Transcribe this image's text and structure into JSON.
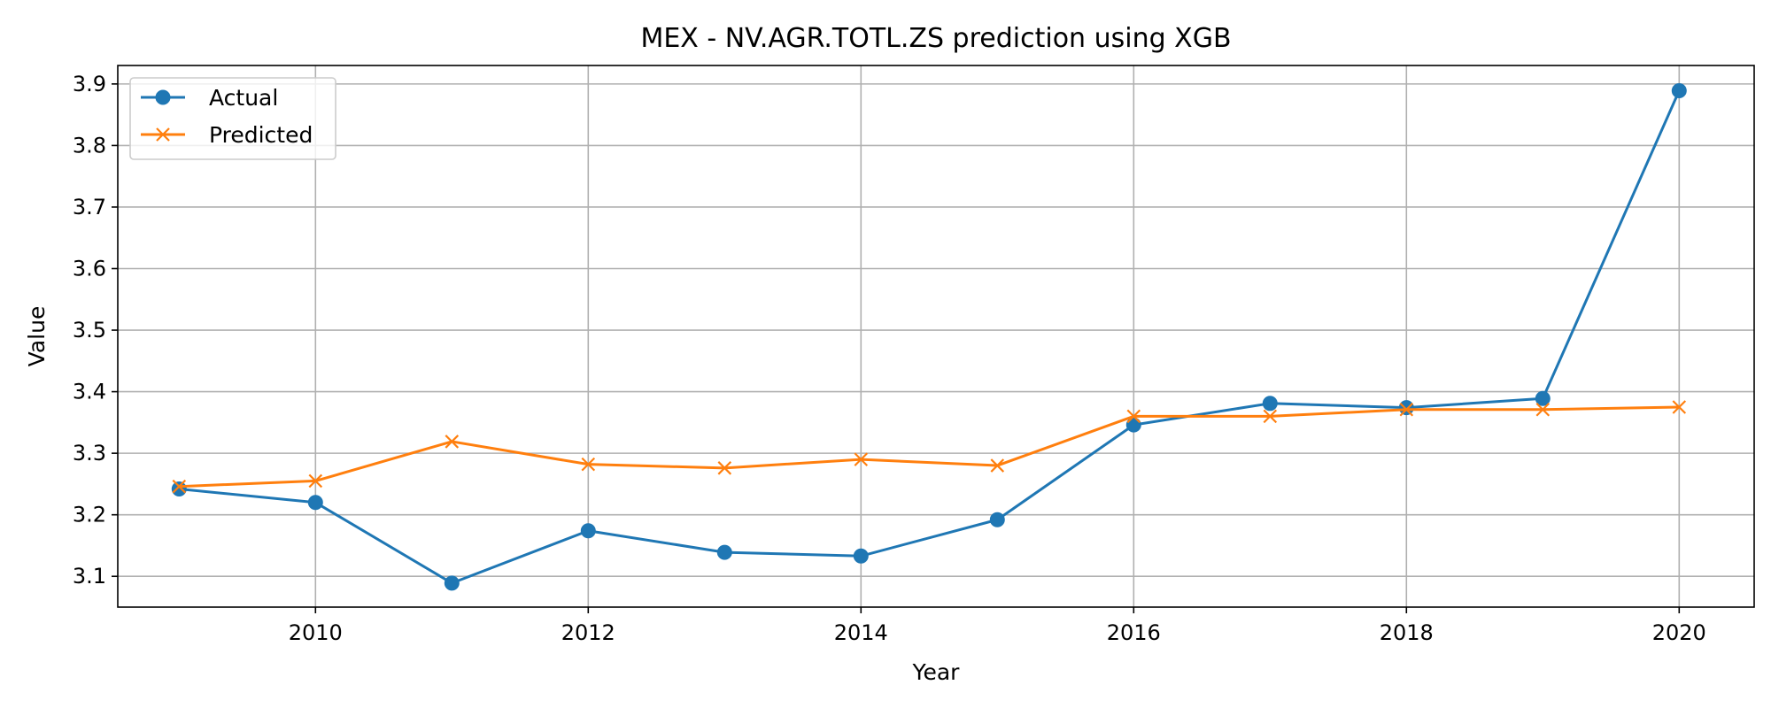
{
  "chart_data": {
    "type": "line",
    "title": "MEX - NV.AGR.TOTL.ZS prediction using XGB",
    "xlabel": "Year",
    "ylabel": "Value",
    "xlim": [
      2008.55,
      2020.55
    ],
    "ylim": [
      3.05,
      3.93
    ],
    "x_ticks": [
      2010,
      2012,
      2014,
      2016,
      2018,
      2020
    ],
    "y_ticks": [
      3.1,
      3.2,
      3.3,
      3.4,
      3.5,
      3.6,
      3.7,
      3.8,
      3.9
    ],
    "x_tick_labels": [
      "2010",
      "2012",
      "2014",
      "2016",
      "2018",
      "2020"
    ],
    "y_tick_labels": [
      "3.1",
      "3.2",
      "3.3",
      "3.4",
      "3.5",
      "3.6",
      "3.7",
      "3.8",
      "3.9"
    ],
    "grid": true,
    "legend_position": "top-left",
    "x": [
      2009,
      2010,
      2011,
      2012,
      2013,
      2014,
      2015,
      2016,
      2017,
      2018,
      2019,
      2020
    ],
    "series": [
      {
        "name": "Actual",
        "marker": "circle",
        "color": "#1f77b4",
        "values": [
          3.242,
          3.22,
          3.089,
          3.174,
          3.139,
          3.133,
          3.192,
          3.346,
          3.381,
          3.374,
          3.389,
          3.889
        ]
      },
      {
        "name": "Predicted",
        "marker": "x",
        "color": "#ff7f0e",
        "values": [
          3.246,
          3.255,
          3.319,
          3.282,
          3.276,
          3.29,
          3.28,
          3.36,
          3.36,
          3.371,
          3.371,
          3.375
        ]
      }
    ]
  }
}
